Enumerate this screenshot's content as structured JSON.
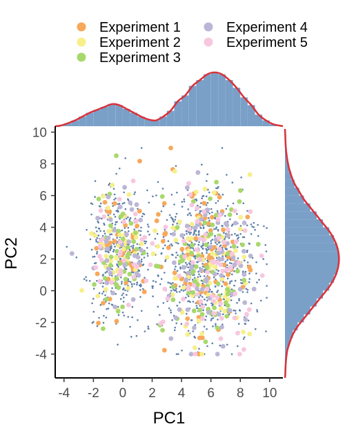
{
  "chart_data": {
    "type": "scatter",
    "subtype": "pca scatter with marginal histograms and density curves",
    "xlabel": "PC1",
    "ylabel": "PC2",
    "xlim": [
      -4.6,
      10.9
    ],
    "ylim": [
      -5.5,
      10.2
    ],
    "xticks": [
      "-4",
      "-2",
      "0",
      "2",
      "4",
      "6",
      "8",
      "10"
    ],
    "yticks": [
      "-4",
      "-2",
      "0",
      "2",
      "4",
      "6",
      "8",
      "10"
    ],
    "legend": {
      "placement": "top",
      "columns": 2
    },
    "background_points": {
      "color": "#5b7fa8",
      "count_approx": 1200,
      "clusters": [
        {
          "cx": -0.2,
          "cy": 2.4,
          "sx": 1.1,
          "sy": 2.1,
          "share": 0.33
        },
        {
          "cx": 5.7,
          "cy": 1.7,
          "sx": 1.6,
          "sy": 2.4,
          "share": 0.67
        }
      ]
    },
    "series": [
      {
        "name": "Experiment 1",
        "color": "#f7a85a",
        "count_approx": 120
      },
      {
        "name": "Experiment 2",
        "color": "#f7ef8a",
        "count_approx": 110
      },
      {
        "name": "Experiment 3",
        "color": "#a8d86c",
        "count_approx": 110
      },
      {
        "name": "Experiment 4",
        "color": "#bcb6d6",
        "count_approx": 100
      },
      {
        "name": "Experiment 5",
        "color": "#f7c7e0",
        "count_approx": 100
      }
    ],
    "marginal_x": {
      "bin_width": 0.5,
      "bins_start": [
        -4.5,
        -4.0,
        -3.5,
        -3.0,
        -2.5,
        -2.0,
        -1.5,
        -1.0,
        -0.5,
        0.0,
        0.5,
        1.0,
        1.5,
        2.0,
        2.5,
        3.0,
        3.5,
        4.0,
        4.5,
        5.0,
        5.5,
        6.0,
        6.5,
        7.0,
        7.5,
        8.0,
        8.5,
        9.0,
        9.5,
        10.0
      ],
      "heights": [
        0.3,
        1.5,
        3,
        5,
        7,
        8.5,
        10,
        11.5,
        11,
        9,
        7,
        5,
        3.5,
        3,
        5,
        8,
        13,
        16,
        21,
        24,
        27,
        28,
        27,
        24,
        20,
        15,
        11,
        6,
        3,
        1
      ],
      "density_color": "#d8343d",
      "histogram_color": "#7aa0c8"
    },
    "marginal_y": {
      "bin_width": 0.5,
      "bins_start": [
        -5.5,
        -5.0,
        -4.5,
        -4.0,
        -3.5,
        -3.0,
        -2.5,
        -2.0,
        -1.5,
        -1.0,
        -0.5,
        0.0,
        0.5,
        1.0,
        1.5,
        2.0,
        2.5,
        3.0,
        3.5,
        4.0,
        4.5,
        5.0,
        5.5,
        6.0,
        6.5,
        7.0,
        7.5,
        8.0,
        8.5,
        9.0,
        9.5
      ],
      "heights": [
        0.2,
        0.4,
        0.8,
        1.5,
        3,
        5,
        8,
        12,
        16,
        20,
        24,
        28,
        31,
        33,
        34,
        34,
        33,
        31,
        28,
        24,
        20,
        16,
        12,
        9,
        6,
        4,
        2.5,
        1.5,
        0.8,
        0.4,
        0.2
      ],
      "density_color": "#d8343d",
      "histogram_color": "#7aa0c8"
    }
  }
}
